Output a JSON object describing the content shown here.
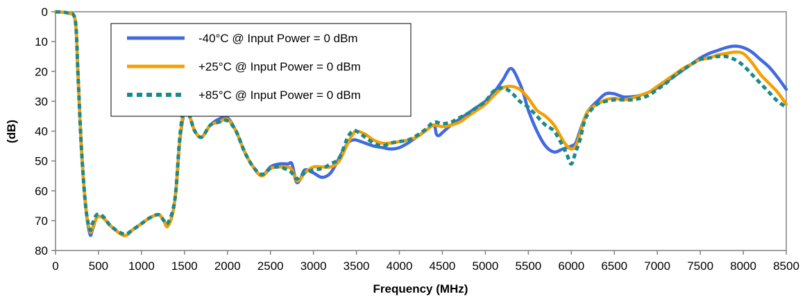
{
  "chart_data": {
    "type": "line",
    "xlabel": "Frequency (MHz)",
    "ylabel": "(dB)",
    "xlim": [
      0,
      8500
    ],
    "ylim": [
      0,
      80
    ],
    "y_inverted": true,
    "grid": false,
    "legend_position": "top-left",
    "x_ticks": [
      "0",
      "500",
      "1000",
      "1500",
      "2000",
      "2500",
      "3000",
      "3500",
      "4000",
      "4500",
      "5000",
      "5500",
      "6000",
      "6500",
      "7000",
      "7500",
      "8000",
      "8500"
    ],
    "y_ticks": [
      "0",
      "10",
      "20",
      "30",
      "40",
      "50",
      "60",
      "70",
      "80"
    ],
    "series": [
      {
        "name": "-40°C @  Input Power = 0 dBm",
        "color": "#4169E1",
        "style": "solid",
        "x": [
          0,
          150,
          230,
          260,
          300,
          350,
          400,
          430,
          480,
          550,
          650,
          800,
          900,
          1000,
          1100,
          1200,
          1260,
          1300,
          1360,
          1400,
          1440,
          1480,
          1510,
          1560,
          1620,
          1700,
          1800,
          1900,
          2000,
          2100,
          2200,
          2300,
          2400,
          2500,
          2600,
          2700,
          2750,
          2800,
          2850,
          2900,
          3000,
          3100,
          3200,
          3300,
          3400,
          3460,
          3500,
          3600,
          3700,
          3800,
          3900,
          4000,
          4100,
          4200,
          4300,
          4400,
          4430,
          4460,
          4500,
          4600,
          4700,
          4800,
          4900,
          5000,
          5100,
          5200,
          5300,
          5400,
          5450,
          5500,
          5600,
          5700,
          5800,
          5900,
          6000,
          6050,
          6100,
          6150,
          6200,
          6300,
          6400,
          6500,
          6600,
          6700,
          6800,
          6900,
          7000,
          7100,
          7200,
          7300,
          7400,
          7500,
          7600,
          7700,
          7800,
          7900,
          8000,
          8100,
          8200,
          8300,
          8400,
          8500
        ],
        "values": [
          0,
          0.5,
          3,
          20,
          45,
          65,
          74.5,
          73,
          69,
          69,
          72,
          75,
          73,
          71,
          69,
          68,
          70,
          72,
          68,
          60,
          45,
          36,
          33,
          35,
          40,
          42,
          38,
          36,
          35.5,
          40,
          47,
          52,
          55,
          52,
          51,
          51,
          51,
          57,
          56,
          53,
          54,
          55.5,
          54,
          49,
          44,
          43,
          43,
          44,
          45,
          45.5,
          46,
          45.5,
          44,
          42,
          40,
          38,
          41,
          41.5,
          40.5,
          38,
          36,
          34,
          32,
          30,
          27,
          23,
          19,
          24,
          28,
          33,
          40,
          45,
          47,
          46,
          45,
          44,
          40,
          36,
          33,
          30,
          27.5,
          27.5,
          28.5,
          28.5,
          28,
          27,
          25.5,
          23.5,
          21.5,
          19.5,
          17.5,
          15.5,
          14,
          13,
          12,
          11.5,
          12,
          13.5,
          16,
          18.5,
          22,
          26
        ]
      },
      {
        "name": "+25°C @  Input Power = 0 dBm",
        "color": "#F5A000",
        "style": "solid",
        "x": [
          0,
          150,
          230,
          260,
          300,
          350,
          400,
          430,
          480,
          550,
          650,
          800,
          900,
          1000,
          1100,
          1200,
          1260,
          1300,
          1360,
          1400,
          1440,
          1480,
          1510,
          1560,
          1620,
          1700,
          1800,
          1900,
          2000,
          2100,
          2200,
          2300,
          2400,
          2500,
          2600,
          2700,
          2750,
          2800,
          2850,
          2900,
          3000,
          3100,
          3200,
          3300,
          3400,
          3460,
          3500,
          3600,
          3700,
          3800,
          3900,
          4000,
          4100,
          4200,
          4300,
          4400,
          4500,
          4600,
          4700,
          4800,
          4900,
          5000,
          5100,
          5200,
          5300,
          5400,
          5500,
          5600,
          5700,
          5800,
          5900,
          5950,
          6000,
          6050,
          6100,
          6150,
          6200,
          6300,
          6400,
          6500,
          6600,
          6700,
          6800,
          6900,
          7000,
          7100,
          7200,
          7300,
          7400,
          7500,
          7600,
          7700,
          7800,
          7900,
          8000,
          8100,
          8200,
          8300,
          8400,
          8500
        ],
        "values": [
          0,
          0.5,
          3,
          20,
          45,
          65,
          73.5,
          72.5,
          69,
          69,
          72,
          75,
          73,
          71,
          69,
          68,
          70,
          72,
          68,
          60,
          45,
          35,
          33,
          35,
          40,
          42,
          38,
          37,
          36,
          40,
          47,
          52,
          55,
          52.5,
          52,
          52,
          53,
          56.5,
          56,
          54,
          52,
          52,
          52,
          50,
          44,
          41,
          40,
          41,
          43,
          44,
          44,
          43.5,
          43,
          42,
          40,
          38,
          38.5,
          38,
          37,
          35,
          33,
          31,
          28,
          25.5,
          25,
          26,
          29,
          33,
          35,
          38,
          43,
          45,
          46,
          45,
          41,
          36,
          33,
          31,
          29.5,
          29,
          29.5,
          29,
          28,
          27,
          25,
          23,
          21,
          19,
          17.5,
          16,
          15.5,
          14.5,
          14,
          13.5,
          14,
          17,
          21,
          24,
          27,
          31
        ]
      },
      {
        "name": "+85°C @  Input Power = 0 dBm",
        "color": "#1A8A8A",
        "style": "dashed",
        "x": [
          0,
          150,
          230,
          260,
          300,
          350,
          400,
          430,
          480,
          550,
          650,
          800,
          900,
          1000,
          1100,
          1200,
          1260,
          1300,
          1360,
          1400,
          1440,
          1480,
          1510,
          1560,
          1620,
          1700,
          1800,
          1900,
          2000,
          2100,
          2200,
          2300,
          2400,
          2500,
          2600,
          2700,
          2750,
          2800,
          2850,
          2900,
          3000,
          3100,
          3200,
          3300,
          3400,
          3460,
          3500,
          3600,
          3700,
          3800,
          3900,
          4000,
          4100,
          4200,
          4300,
          4400,
          4500,
          4600,
          4700,
          4800,
          4900,
          5000,
          5100,
          5200,
          5300,
          5400,
          5500,
          5600,
          5700,
          5800,
          5900,
          5950,
          6000,
          6050,
          6100,
          6150,
          6200,
          6300,
          6400,
          6500,
          6600,
          6700,
          6800,
          6900,
          7000,
          7100,
          7200,
          7300,
          7400,
          7500,
          7600,
          7700,
          7800,
          7900,
          8000,
          8100,
          8200,
          8300,
          8400,
          8500
        ],
        "values": [
          0,
          0.5,
          3,
          20,
          45,
          65,
          73,
          71,
          68,
          68.5,
          72,
          74.5,
          73,
          71,
          69,
          68,
          70,
          71,
          67,
          60,
          44,
          34,
          32.5,
          35,
          40,
          42,
          38,
          37,
          36.5,
          40,
          47,
          52,
          54.5,
          52.5,
          52,
          53,
          54,
          56,
          55,
          54,
          53,
          52.5,
          51,
          49,
          42,
          40,
          40,
          42,
          44,
          45,
          44,
          43.5,
          43,
          41.5,
          39.5,
          37,
          37.5,
          37,
          35.5,
          34,
          32,
          30,
          26.5,
          25.5,
          27,
          30,
          32,
          35,
          38,
          40,
          45,
          48,
          51,
          47,
          43,
          37,
          34,
          31,
          30,
          29.5,
          29.5,
          29.5,
          29,
          28,
          26,
          24,
          21.5,
          19.5,
          17.5,
          16,
          15.5,
          15,
          15,
          16,
          18,
          21,
          24,
          27,
          30,
          32
        ]
      }
    ]
  }
}
